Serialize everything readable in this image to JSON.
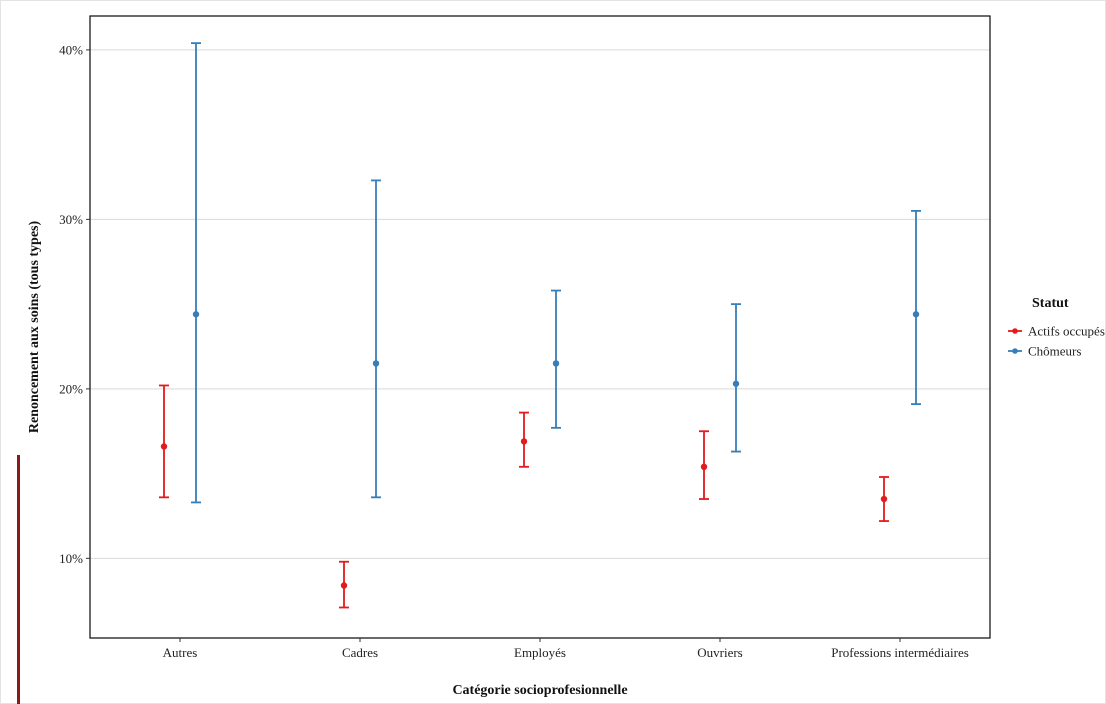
{
  "chart_data": {
    "type": "errorbar",
    "xlabel": "Catégorie socioprofesionnelle",
    "ylabel": "Renoncement aux soins (tous types)",
    "categories": [
      "Autres",
      "Cadres",
      "Employés",
      "Ouvriers",
      "Professions intermédiaires"
    ],
    "ylim": [
      5.3,
      42
    ],
    "yticks": [
      10,
      20,
      30,
      40
    ],
    "ytick_labels": [
      "10%",
      "20%",
      "30%",
      "40%"
    ],
    "grid": "horizontal major",
    "legend": {
      "title": "Statut",
      "position": "right"
    },
    "series": [
      {
        "name": "Actifs occupés",
        "color": "#e41a1c",
        "values": [
          16.6,
          8.4,
          16.9,
          15.4,
          13.5
        ],
        "lower": [
          13.6,
          7.1,
          15.4,
          13.5,
          12.2
        ],
        "upper": [
          20.2,
          9.8,
          18.6,
          17.5,
          14.8
        ]
      },
      {
        "name": "Chômeurs",
        "color": "#377eb8",
        "values": [
          24.4,
          21.5,
          21.5,
          20.3,
          24.4
        ],
        "lower": [
          13.3,
          13.6,
          17.7,
          16.3,
          19.1
        ],
        "upper": [
          40.4,
          32.3,
          25.8,
          25.0,
          30.5
        ]
      }
    ]
  }
}
